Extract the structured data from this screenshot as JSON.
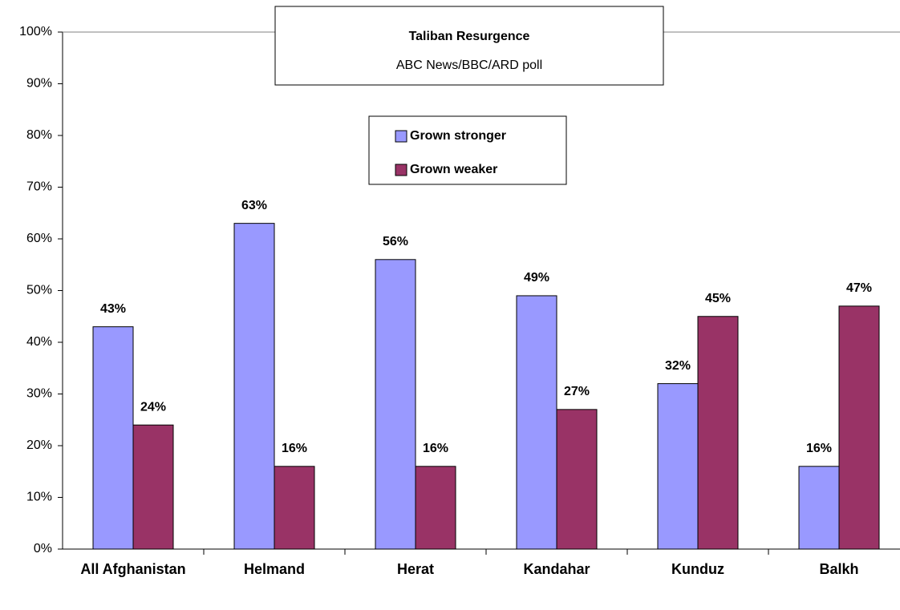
{
  "chart_data": {
    "type": "bar",
    "title": "Taliban Resurgence",
    "subtitle": "ABC News/BBC/ARD poll",
    "categories": [
      "All Afghanistan",
      "Helmand",
      "Herat",
      "Kandahar",
      "Kunduz",
      "Balkh"
    ],
    "series": [
      {
        "name": "Grown stronger",
        "color": "#9999ff",
        "values": [
          43,
          63,
          56,
          49,
          32,
          16
        ],
        "value_labels": [
          "43%",
          "63%",
          "56%",
          "49%",
          "32%",
          "16%"
        ]
      },
      {
        "name": "Grown weaker",
        "color": "#993366",
        "values": [
          24,
          16,
          16,
          27,
          45,
          47
        ],
        "value_labels": [
          "24%",
          "16%",
          "16%",
          "27%",
          "45%",
          "47%"
        ]
      }
    ],
    "ylim": [
      0,
      100
    ],
    "yticks": [
      {
        "value": 0,
        "label": "0%"
      },
      {
        "value": 10,
        "label": "10%"
      },
      {
        "value": 20,
        "label": "20%"
      },
      {
        "value": 30,
        "label": "30%"
      },
      {
        "value": 40,
        "label": "40%"
      },
      {
        "value": 50,
        "label": "50%"
      },
      {
        "value": 60,
        "label": "60%"
      },
      {
        "value": 70,
        "label": "70%"
      },
      {
        "value": 80,
        "label": "80%"
      },
      {
        "value": 90,
        "label": "90%"
      },
      {
        "value": 100,
        "label": "100%"
      }
    ],
    "grid": false,
    "legend": "top"
  }
}
